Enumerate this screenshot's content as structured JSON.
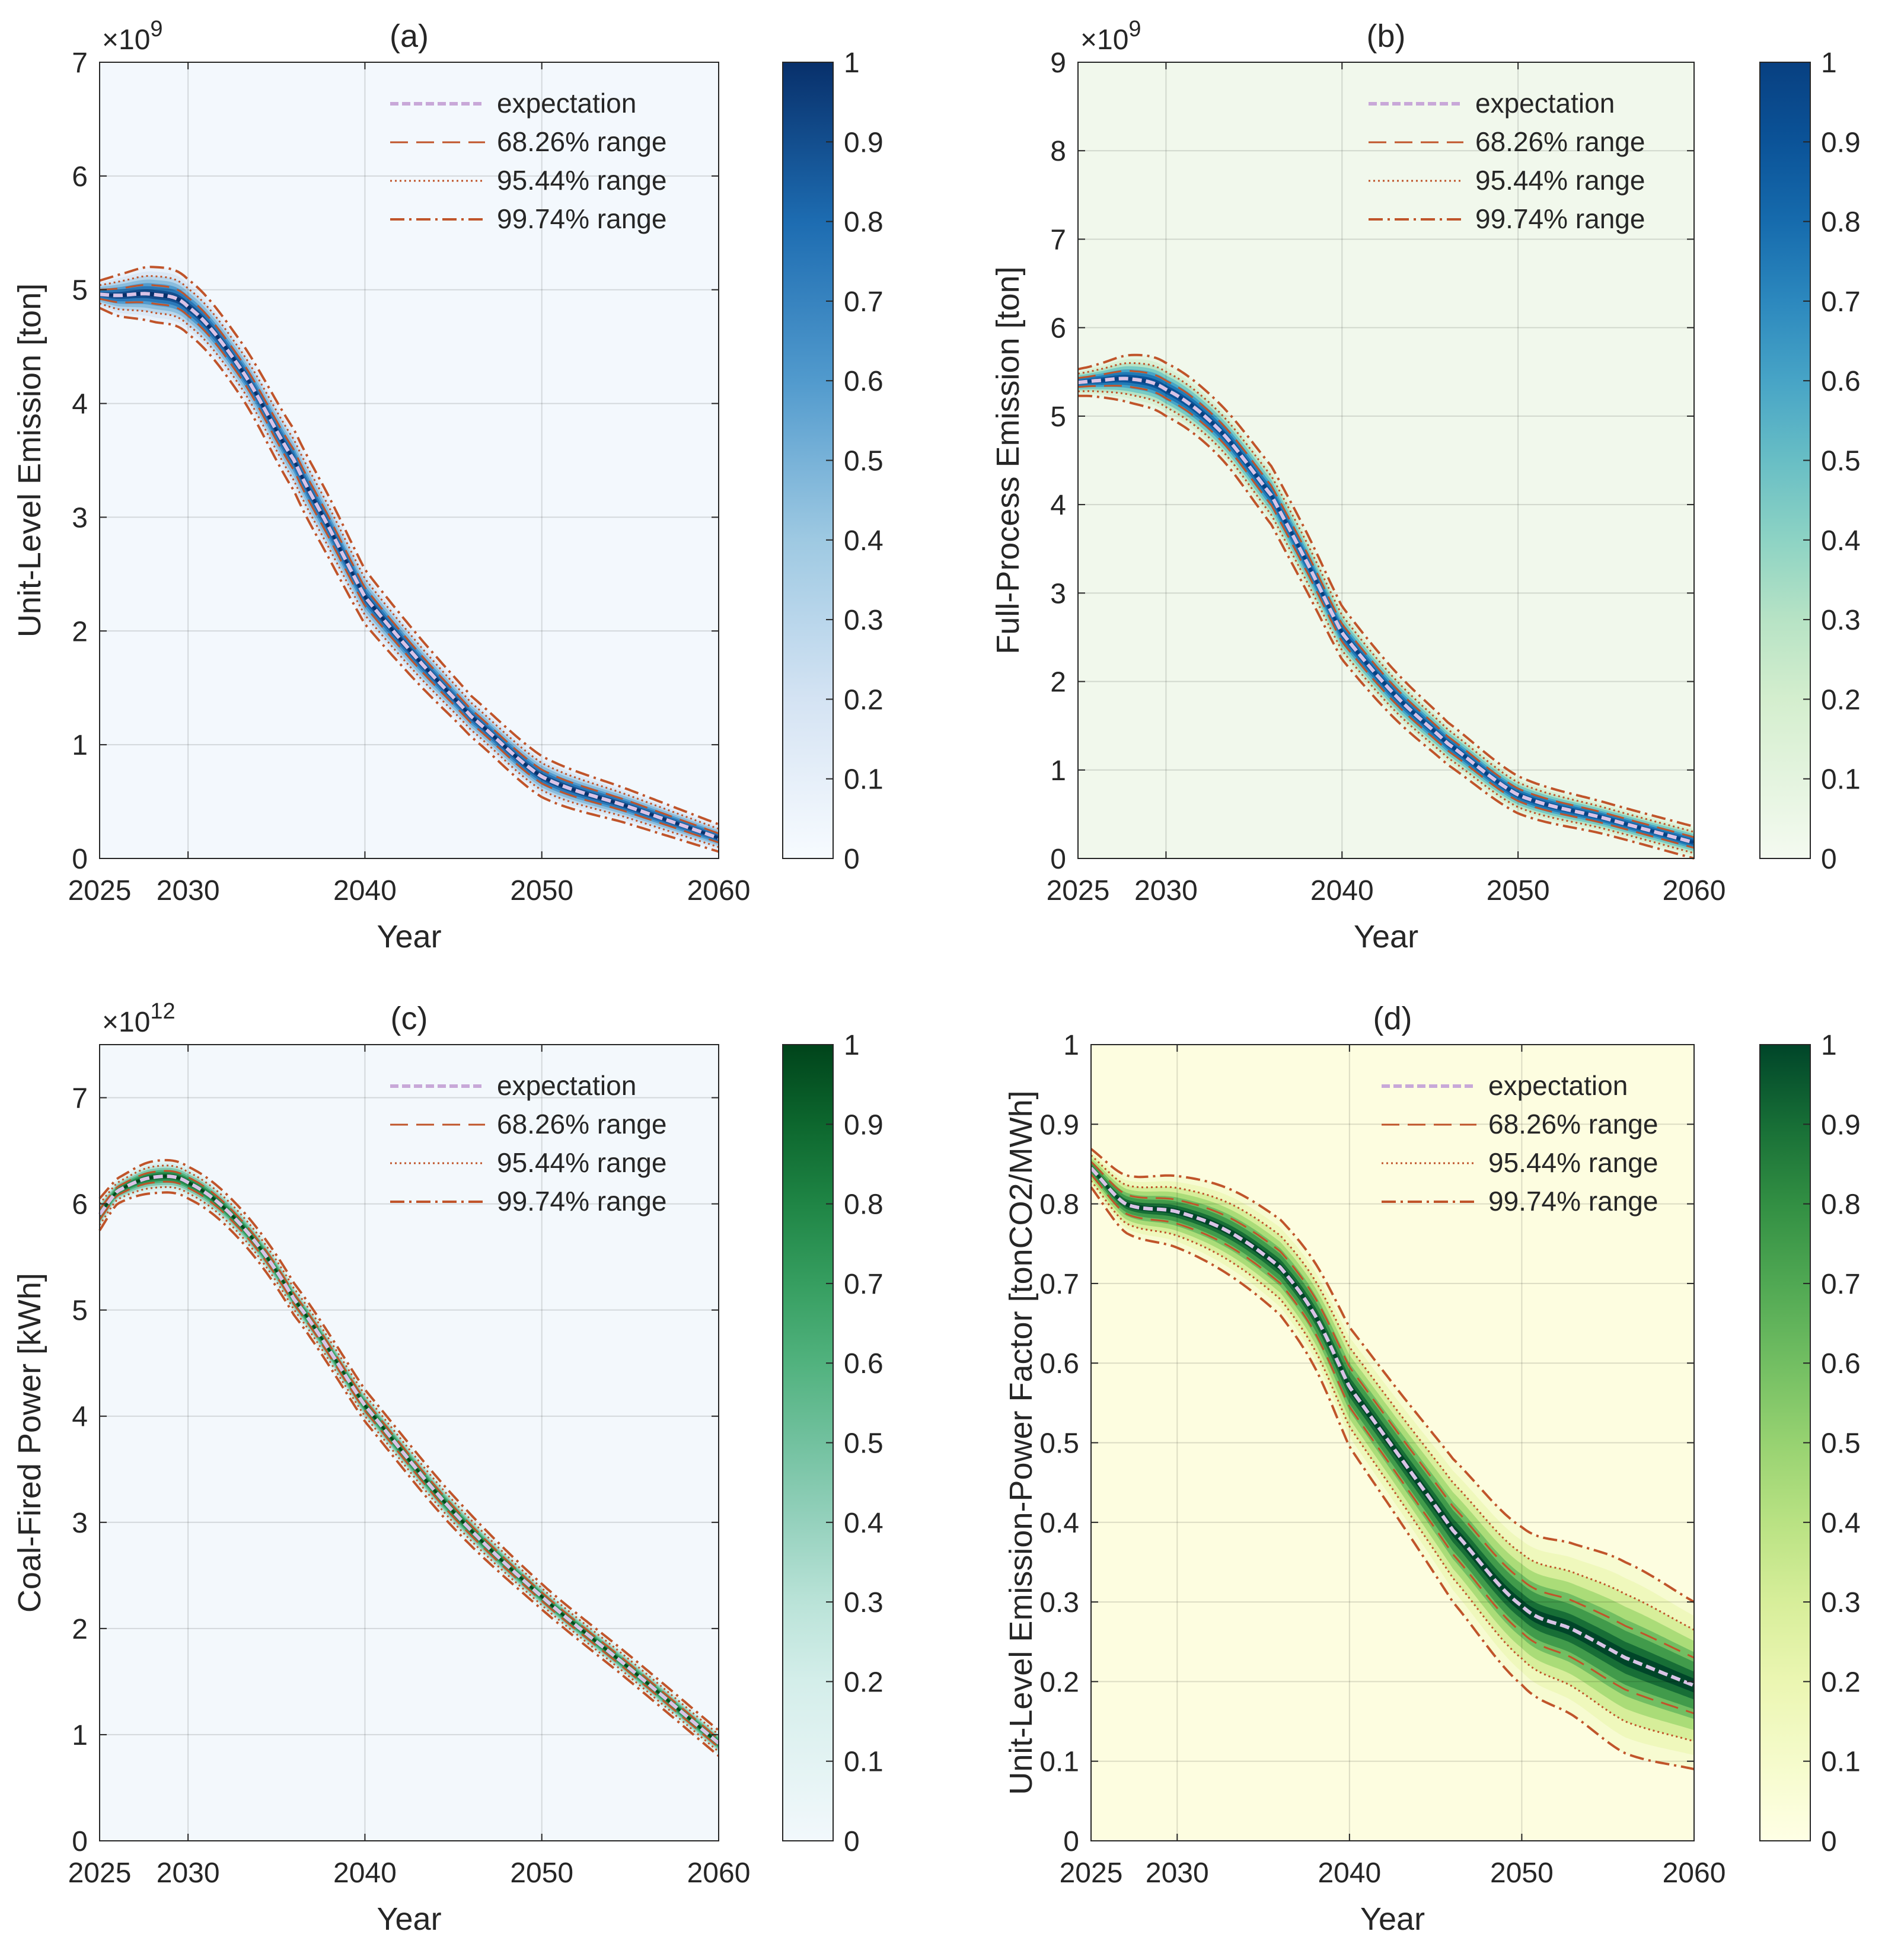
{
  "figure": {
    "legend_entries": [
      "expectation",
      "68.26% range",
      "95.44% range",
      "99.74% range"
    ]
  },
  "chart_data": [
    {
      "panel": "a",
      "type": "line",
      "title": "(a)",
      "xlabel": "Year",
      "ylabel": "Unit-Level Emission [ton]",
      "exponent_base": "×10",
      "exponent_power": "9",
      "xlim": [
        2025,
        2060
      ],
      "ylim": [
        0,
        7
      ],
      "xticks": [
        2025,
        2030,
        2040,
        2050,
        2060
      ],
      "yticks": [
        0,
        1,
        2,
        3,
        4,
        5,
        6,
        7
      ],
      "grid": true,
      "legend_position": "top-right",
      "background": "#f3f8fd",
      "colormap": "blue",
      "colorbar": {
        "min": 0,
        "max": 1,
        "ticks": [
          0,
          0.1,
          0.2,
          0.3,
          0.4,
          0.5,
          0.6,
          0.7,
          0.8,
          0.9,
          1
        ]
      },
      "x": [
        2025,
        2026,
        2028,
        2030,
        2033,
        2036,
        2038,
        2040,
        2043,
        2046,
        2050,
        2055,
        2060
      ],
      "expectation": [
        4.96,
        4.95,
        4.96,
        4.85,
        4.3,
        3.5,
        2.9,
        2.3,
        1.75,
        1.25,
        0.72,
        0.45,
        0.18
      ],
      "sigma": [
        0.04,
        0.06,
        0.08,
        0.08,
        0.08,
        0.09,
        0.09,
        0.08,
        0.07,
        0.06,
        0.06,
        0.05,
        0.04
      ]
    },
    {
      "panel": "b",
      "type": "line",
      "title": "(b)",
      "xlabel": "Year",
      "ylabel": "Full-Process Emission [ton]",
      "exponent_base": "×10",
      "exponent_power": "9",
      "xlim": [
        2025,
        2060
      ],
      "ylim": [
        0,
        9
      ],
      "xticks": [
        2025,
        2030,
        2040,
        2050,
        2060
      ],
      "yticks": [
        0,
        1,
        2,
        3,
        4,
        5,
        6,
        7,
        8,
        9
      ],
      "grid": true,
      "legend_position": "top-right",
      "background": "#f1f8ec",
      "colormap": "blue-teal",
      "colorbar": {
        "min": 0,
        "max": 1,
        "ticks": [
          0,
          0.1,
          0.2,
          0.3,
          0.4,
          0.5,
          0.6,
          0.7,
          0.8,
          0.9,
          1
        ]
      },
      "x": [
        2025,
        2026,
        2028,
        2030,
        2033,
        2036,
        2038,
        2040,
        2043,
        2046,
        2050,
        2055,
        2060
      ],
      "expectation": [
        5.38,
        5.4,
        5.42,
        5.3,
        4.85,
        4.1,
        3.35,
        2.55,
        1.85,
        1.3,
        0.72,
        0.45,
        0.18
      ],
      "sigma": [
        0.05,
        0.06,
        0.09,
        0.1,
        0.1,
        0.11,
        0.11,
        0.1,
        0.09,
        0.08,
        0.07,
        0.06,
        0.06
      ]
    },
    {
      "panel": "c",
      "type": "line",
      "title": "(c)",
      "xlabel": "Year",
      "ylabel": "Coal-Fired Power [kWh]",
      "exponent_base": "×10",
      "exponent_power": "12",
      "xlim": [
        2025,
        2060
      ],
      "ylim": [
        0,
        7.5
      ],
      "xticks": [
        2025,
        2030,
        2040,
        2050,
        2060
      ],
      "yticks": [
        0,
        1,
        2,
        3,
        4,
        5,
        6,
        7
      ],
      "grid": true,
      "legend_position": "top-right",
      "background": "#f3f8fc",
      "colormap": "green",
      "colorbar": {
        "min": 0,
        "max": 1,
        "ticks": [
          0,
          0.1,
          0.2,
          0.3,
          0.4,
          0.5,
          0.6,
          0.7,
          0.8,
          0.9,
          1
        ]
      },
      "x": [
        2025,
        2026,
        2028,
        2030,
        2033,
        2036,
        2040,
        2045,
        2050,
        2055,
        2060
      ],
      "expectation": [
        5.9,
        6.12,
        6.25,
        6.2,
        5.8,
        5.1,
        4.1,
        3.1,
        2.3,
        1.62,
        0.92
      ],
      "sigma": [
        0.05,
        0.04,
        0.05,
        0.05,
        0.05,
        0.05,
        0.05,
        0.05,
        0.04,
        0.04,
        0.04
      ]
    },
    {
      "panel": "d",
      "type": "line",
      "title": "(d)",
      "xlabel": "Year",
      "ylabel": "Unit-Level Emission-Power Factor [tonCO2/MWh]",
      "xlim": [
        2025,
        2060
      ],
      "ylim": [
        0,
        1
      ],
      "xticks": [
        2025,
        2030,
        2040,
        2050,
        2060
      ],
      "yticks": [
        0,
        0.1,
        0.2,
        0.3,
        0.4,
        0.5,
        0.6,
        0.7,
        0.8,
        0.9,
        1
      ],
      "grid": true,
      "legend_position": "top-right",
      "background": "#fdfde0",
      "colormap": "yellow-green",
      "colorbar": {
        "min": 0,
        "max": 1,
        "ticks": [
          0,
          0.1,
          0.2,
          0.3,
          0.4,
          0.5,
          0.6,
          0.7,
          0.8,
          0.9,
          1
        ]
      },
      "x": [
        2025,
        2027,
        2030,
        2033,
        2036,
        2038,
        2040,
        2043,
        2046,
        2050,
        2053,
        2056,
        2060
      ],
      "expectation": [
        0.845,
        0.8,
        0.79,
        0.765,
        0.72,
        0.66,
        0.57,
        0.48,
        0.39,
        0.295,
        0.265,
        0.23,
        0.195
      ],
      "sigma": [
        0.008,
        0.012,
        0.015,
        0.018,
        0.02,
        0.022,
        0.025,
        0.027,
        0.03,
        0.033,
        0.036,
        0.04,
        0.035
      ]
    }
  ]
}
